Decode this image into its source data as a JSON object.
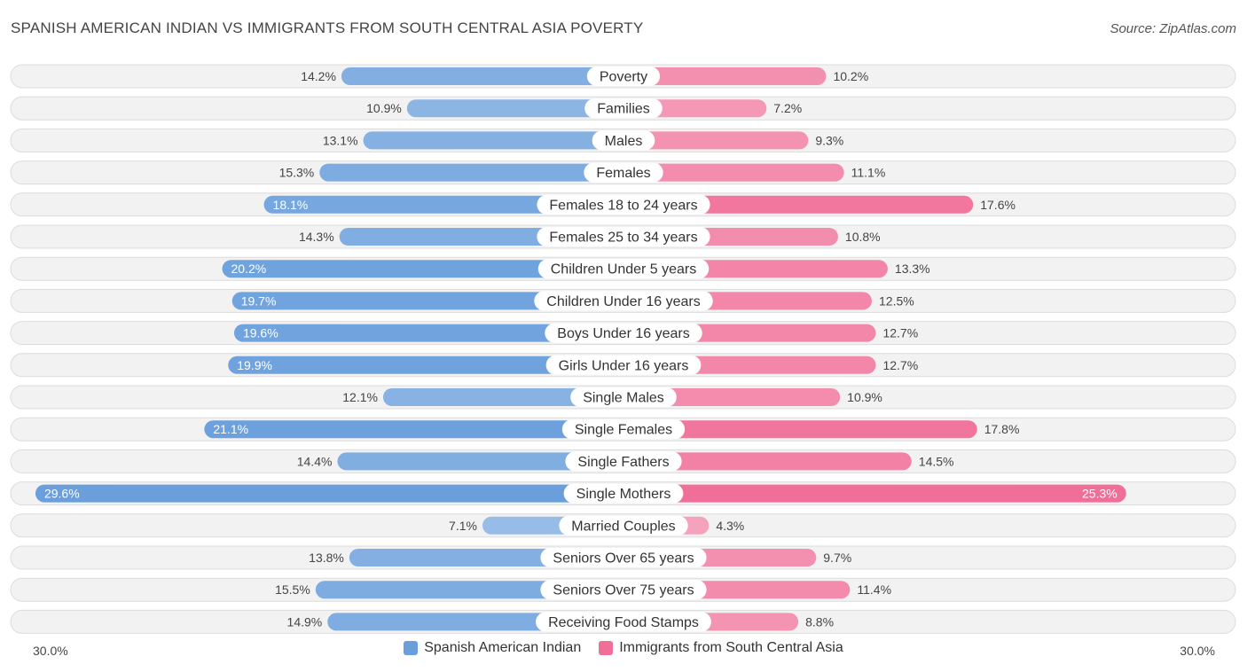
{
  "header": {
    "title": "SPANISH AMERICAN INDIAN VS IMMIGRANTS FROM SOUTH CENTRAL ASIA POVERTY",
    "source": "Source: ZipAtlas.com"
  },
  "colors": {
    "left": "#6a9fdc",
    "right": "#f06f98"
  },
  "axis": {
    "left_label": "30.0%",
    "right_label": "30.0%"
  },
  "legend": {
    "left": "Spanish American Indian",
    "right": "Immigrants from South Central Asia"
  },
  "chart_data": {
    "type": "bar",
    "orientation": "horizontal-diverging",
    "title": "SPANISH AMERICAN INDIAN VS IMMIGRANTS FROM SOUTH CENTRAL ASIA POVERTY",
    "xlim": [
      0,
      30
    ],
    "categories": [
      "Poverty",
      "Families",
      "Males",
      "Females",
      "Females 18 to 24 years",
      "Females 25 to 34 years",
      "Children Under 5 years",
      "Children Under 16 years",
      "Boys Under 16 years",
      "Girls Under 16 years",
      "Single Males",
      "Single Females",
      "Single Fathers",
      "Single Mothers",
      "Married Couples",
      "Seniors Over 65 years",
      "Seniors Over 75 years",
      "Receiving Food Stamps"
    ],
    "series": [
      {
        "name": "Spanish American Indian",
        "values": [
          14.2,
          10.9,
          13.1,
          15.3,
          18.1,
          14.3,
          20.2,
          19.7,
          19.6,
          19.9,
          12.1,
          21.1,
          14.4,
          29.6,
          7.1,
          13.8,
          15.5,
          14.9
        ],
        "labels": [
          "14.2%",
          "10.9%",
          "13.1%",
          "15.3%",
          "18.1%",
          "14.3%",
          "20.2%",
          "19.7%",
          "19.6%",
          "19.9%",
          "12.1%",
          "21.1%",
          "14.4%",
          "29.6%",
          "7.1%",
          "13.8%",
          "15.5%",
          "14.9%"
        ]
      },
      {
        "name": "Immigrants from South Central Asia",
        "values": [
          10.2,
          7.2,
          9.3,
          11.1,
          17.6,
          10.8,
          13.3,
          12.5,
          12.7,
          12.7,
          10.9,
          17.8,
          14.5,
          25.3,
          4.3,
          9.7,
          11.4,
          8.8
        ],
        "labels": [
          "10.2%",
          "7.2%",
          "9.3%",
          "11.1%",
          "17.6%",
          "10.8%",
          "13.3%",
          "12.5%",
          "12.7%",
          "12.7%",
          "10.9%",
          "17.8%",
          "14.5%",
          "25.3%",
          "4.3%",
          "9.7%",
          "11.4%",
          "8.8%"
        ]
      }
    ]
  }
}
